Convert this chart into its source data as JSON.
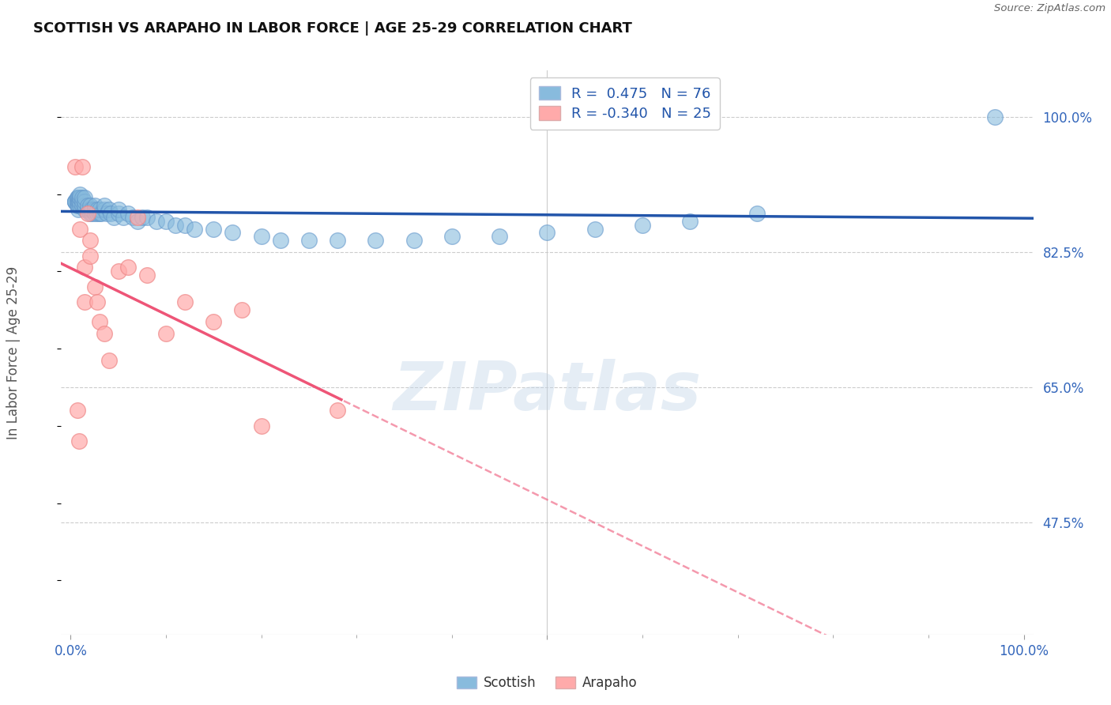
{
  "title": "SCOTTISH VS ARAPAHO IN LABOR FORCE | AGE 25-29 CORRELATION CHART",
  "source_text": "Source: ZipAtlas.com",
  "ylabel": "In Labor Force | Age 25-29",
  "xlim": [
    -0.01,
    1.01
  ],
  "ylim": [
    0.33,
    1.06
  ],
  "ytick_vals": [
    0.475,
    0.65,
    0.825,
    1.0
  ],
  "ytick_labels": [
    "47.5%",
    "65.0%",
    "82.5%",
    "100.0%"
  ],
  "xtick_vals": [
    0.0,
    0.5,
    1.0
  ],
  "xtick_labels": [
    "0.0%",
    "",
    "100.0%"
  ],
  "scottish_R": 0.475,
  "scottish_N": 76,
  "arapaho_R": -0.34,
  "arapaho_N": 25,
  "scottish_color": "#88BBDD",
  "arapaho_color": "#FFAAAA",
  "scottish_edge_color": "#6699CC",
  "arapaho_edge_color": "#EE8888",
  "trend_scottish_color": "#2255AA",
  "trend_arapaho_color": "#EE5577",
  "watermark": "ZIPatlas",
  "scottish_x": [
    0.005,
    0.005,
    0.005,
    0.005,
    0.007,
    0.007,
    0.007,
    0.007,
    0.008,
    0.008,
    0.008,
    0.008,
    0.009,
    0.009,
    0.01,
    0.01,
    0.01,
    0.01,
    0.01,
    0.012,
    0.012,
    0.012,
    0.015,
    0.015,
    0.015,
    0.015,
    0.018,
    0.018,
    0.02,
    0.02,
    0.02,
    0.022,
    0.022,
    0.025,
    0.025,
    0.025,
    0.028,
    0.028,
    0.03,
    0.03,
    0.032,
    0.035,
    0.035,
    0.038,
    0.04,
    0.042,
    0.045,
    0.05,
    0.05,
    0.055,
    0.06,
    0.065,
    0.07,
    0.075,
    0.08,
    0.09,
    0.1,
    0.11,
    0.12,
    0.13,
    0.15,
    0.17,
    0.2,
    0.22,
    0.25,
    0.28,
    0.32,
    0.36,
    0.4,
    0.45,
    0.5,
    0.55,
    0.6,
    0.65,
    0.72,
    0.97
  ],
  "scottish_y": [
    0.89,
    0.89,
    0.89,
    0.89,
    0.885,
    0.89,
    0.895,
    0.895,
    0.88,
    0.885,
    0.89,
    0.895,
    0.895,
    0.89,
    0.885,
    0.89,
    0.895,
    0.895,
    0.9,
    0.885,
    0.89,
    0.895,
    0.88,
    0.885,
    0.89,
    0.895,
    0.88,
    0.885,
    0.875,
    0.88,
    0.885,
    0.875,
    0.88,
    0.875,
    0.88,
    0.885,
    0.875,
    0.88,
    0.875,
    0.88,
    0.875,
    0.88,
    0.885,
    0.875,
    0.88,
    0.875,
    0.87,
    0.875,
    0.88,
    0.87,
    0.875,
    0.87,
    0.865,
    0.87,
    0.87,
    0.865,
    0.865,
    0.86,
    0.86,
    0.855,
    0.855,
    0.85,
    0.845,
    0.84,
    0.84,
    0.84,
    0.84,
    0.84,
    0.845,
    0.845,
    0.85,
    0.855,
    0.86,
    0.865,
    0.875,
    1.0
  ],
  "arapaho_x": [
    0.005,
    0.007,
    0.009,
    0.01,
    0.012,
    0.015,
    0.015,
    0.018,
    0.02,
    0.02,
    0.025,
    0.028,
    0.03,
    0.035,
    0.04,
    0.05,
    0.06,
    0.07,
    0.08,
    0.1,
    0.12,
    0.15,
    0.18,
    0.2,
    0.28
  ],
  "arapaho_y": [
    0.935,
    0.62,
    0.58,
    0.855,
    0.935,
    0.805,
    0.76,
    0.875,
    0.84,
    0.82,
    0.78,
    0.76,
    0.735,
    0.72,
    0.685,
    0.8,
    0.805,
    0.87,
    0.795,
    0.72,
    0.76,
    0.735,
    0.75,
    0.6,
    0.62
  ]
}
